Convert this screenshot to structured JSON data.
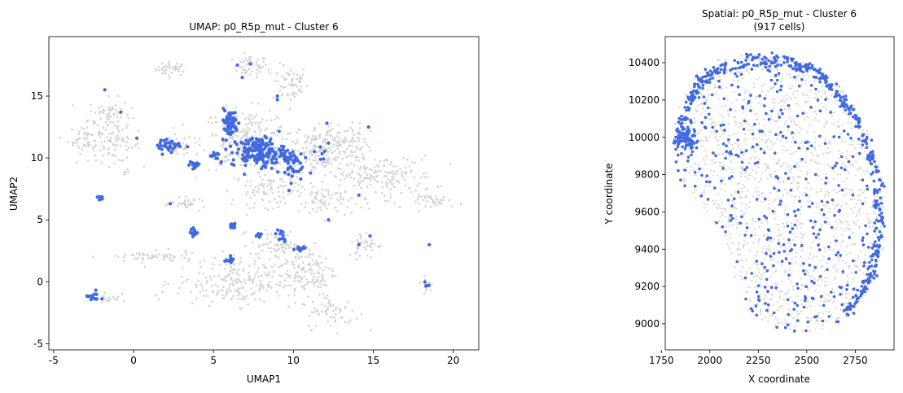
{
  "chart_data": [
    {
      "type": "scatter",
      "title": "UMAP: p0_R5p_mut - Cluster 6",
      "xlabel": "UMAP1",
      "ylabel": "UMAP2",
      "xlim": [
        -5.3,
        21.6
      ],
      "ylim": [
        -5.5,
        19.8
      ],
      "xticks": [
        -5,
        0,
        5,
        10,
        15,
        20
      ],
      "yticks": [
        -5,
        0,
        5,
        10,
        15
      ],
      "grid": false,
      "background_color": "#d3d3d3",
      "highlight_color": "#4169e1",
      "series": [
        {
          "role": "background",
          "color": "#d3d3d3",
          "regions": [
            {
              "cx": 2.4,
              "cy": 17.2,
              "rx": 0.9,
              "ry": 0.5,
              "n": 40
            },
            {
              "cx": 7.3,
              "cy": 17.4,
              "rx": 1.0,
              "ry": 0.8,
              "n": 50
            },
            {
              "cx": 9.8,
              "cy": 16.0,
              "rx": 1.0,
              "ry": 1.4,
              "n": 60
            },
            {
              "cx": -1.5,
              "cy": 13.5,
              "rx": 1.2,
              "ry": 1.2,
              "n": 70
            },
            {
              "cx": -3.0,
              "cy": 11.5,
              "rx": 1.0,
              "ry": 1.0,
              "n": 50
            },
            {
              "cx": -1.2,
              "cy": 11.0,
              "rx": 1.5,
              "ry": 1.2,
              "n": 70
            },
            {
              "cx": 2.7,
              "cy": 11.0,
              "rx": 0.9,
              "ry": 0.8,
              "n": 50
            },
            {
              "cx": 7.0,
              "cy": 11.5,
              "rx": 2.5,
              "ry": 2.2,
              "n": 220
            },
            {
              "cx": 11.5,
              "cy": 10.5,
              "rx": 2.5,
              "ry": 1.8,
              "n": 180
            },
            {
              "cx": 13.0,
              "cy": 11.5,
              "rx": 1.5,
              "ry": 1.2,
              "n": 80
            },
            {
              "cx": 15.5,
              "cy": 8.5,
              "rx": 3.0,
              "ry": 1.5,
              "n": 170
            },
            {
              "cx": 19.0,
              "cy": 6.5,
              "rx": 1.5,
              "ry": 0.5,
              "n": 40
            },
            {
              "cx": 8.5,
              "cy": 7.5,
              "rx": 2.0,
              "ry": 1.3,
              "n": 100
            },
            {
              "cx": 12.0,
              "cy": 6.5,
              "rx": 1.5,
              "ry": 1.2,
              "n": 70
            },
            {
              "cx": 3.5,
              "cy": 6.3,
              "rx": 1.0,
              "ry": 0.4,
              "n": 30
            },
            {
              "cx": 1.0,
              "cy": 2.0,
              "rx": 2.5,
              "ry": 0.4,
              "n": 60
            },
            {
              "cx": 6.5,
              "cy": 0.0,
              "rx": 3.5,
              "ry": 1.7,
              "n": 230
            },
            {
              "cx": 9.0,
              "cy": 3.0,
              "rx": 1.5,
              "ry": 1.0,
              "n": 70
            },
            {
              "cx": 11.0,
              "cy": 0.8,
              "rx": 1.5,
              "ry": 2.0,
              "n": 110
            },
            {
              "cx": 12.5,
              "cy": -2.5,
              "rx": 1.5,
              "ry": 1.2,
              "n": 60
            },
            {
              "cx": 14.5,
              "cy": 3.0,
              "rx": 1.0,
              "ry": 1.0,
              "n": 40
            },
            {
              "cx": -1.5,
              "cy": -1.3,
              "rx": 0.6,
              "ry": 0.6,
              "n": 20
            },
            {
              "cx": 18.3,
              "cy": -0.2,
              "rx": 0.3,
              "ry": 0.5,
              "n": 15
            },
            {
              "cx": -0.5,
              "cy": 8.9,
              "rx": 0.2,
              "ry": 0.2,
              "n": 6
            }
          ]
        },
        {
          "role": "highlight",
          "color": "#4169e1",
          "regions": [
            {
              "cx": 6.0,
              "cy": 12.8,
              "rx": 0.5,
              "ry": 1.0,
              "n": 60
            },
            {
              "cx": 7.8,
              "cy": 10.5,
              "rx": 1.5,
              "ry": 1.1,
              "n": 170
            },
            {
              "cx": 2.3,
              "cy": 11.0,
              "rx": 0.7,
              "ry": 0.4,
              "n": 30
            },
            {
              "cx": 3.8,
              "cy": 9.4,
              "rx": 0.3,
              "ry": 0.4,
              "n": 20
            },
            {
              "cx": 5.1,
              "cy": 10.2,
              "rx": 0.3,
              "ry": 0.4,
              "n": 12
            },
            {
              "cx": 9.8,
              "cy": 9.5,
              "rx": 0.7,
              "ry": 1.3,
              "n": 45
            },
            {
              "cx": 11.7,
              "cy": 10.4,
              "rx": 0.5,
              "ry": 0.8,
              "n": 6
            },
            {
              "cx": -2.1,
              "cy": 6.8,
              "rx": 0.2,
              "ry": 0.15,
              "n": 10
            },
            {
              "cx": 3.8,
              "cy": 4.0,
              "rx": 0.2,
              "ry": 0.3,
              "n": 14
            },
            {
              "cx": 6.2,
              "cy": 4.5,
              "rx": 0.3,
              "ry": 0.3,
              "n": 14
            },
            {
              "cx": 6.0,
              "cy": 1.7,
              "rx": 0.3,
              "ry": 0.2,
              "n": 12
            },
            {
              "cx": 7.8,
              "cy": 3.8,
              "rx": 0.2,
              "ry": 0.2,
              "n": 8
            },
            {
              "cx": 9.2,
              "cy": 3.7,
              "rx": 0.3,
              "ry": 0.5,
              "n": 12
            },
            {
              "cx": 10.4,
              "cy": 2.6,
              "rx": 0.4,
              "ry": 0.2,
              "n": 15
            },
            {
              "cx": -2.5,
              "cy": -1.2,
              "rx": 0.4,
              "ry": 0.4,
              "n": 14
            },
            {
              "cx": 18.4,
              "cy": -0.3,
              "rx": 0.15,
              "ry": 0.25,
              "n": 4
            }
          ],
          "points": [
            [
              -1.8,
              15.5
            ],
            [
              -0.8,
              13.7
            ],
            [
              6.5,
              17.5
            ],
            [
              6.8,
              16.5
            ],
            [
              7.3,
              17.6
            ],
            [
              9.0,
              15.0
            ],
            [
              9.0,
              14.7
            ],
            [
              12.1,
              12.8
            ],
            [
              14.7,
              12.5
            ],
            [
              12.2,
              11.2
            ],
            [
              14.1,
              7.0
            ],
            [
              12.2,
              5.0
            ],
            [
              14.8,
              3.7
            ],
            [
              14.1,
              3.0
            ],
            [
              18.5,
              3.0
            ],
            [
              2.3,
              6.3
            ],
            [
              1.8,
              10.3
            ],
            [
              0.2,
              11.6
            ]
          ]
        }
      ]
    },
    {
      "type": "scatter",
      "title": "Spatial: p0_R5p_mut - Cluster 6",
      "subtitle": "(917 cells)",
      "xlabel": "X coordinate",
      "ylabel": "Y coordinate",
      "xlim": [
        1770,
        2950
      ],
      "ylim": [
        8860,
        10540
      ],
      "xticks": [
        1750,
        2000,
        2250,
        2500,
        2750
      ],
      "yticks": [
        9000,
        9200,
        9400,
        9600,
        9800,
        10000,
        10200,
        10400
      ],
      "grid": false,
      "background_color": "#d3d3d3",
      "highlight_color": "#4169e1",
      "series": [
        {
          "role": "background",
          "color": "#d3d3d3",
          "n": 1500
        },
        {
          "role": "highlight",
          "name": "Cluster 6",
          "color": "#4169e1",
          "count": 917,
          "dense_edge_band": "right",
          "dense_cluster": {
            "cx": 1880,
            "cy": 9990,
            "rx": 45,
            "ry": 80
          }
        }
      ]
    }
  ]
}
